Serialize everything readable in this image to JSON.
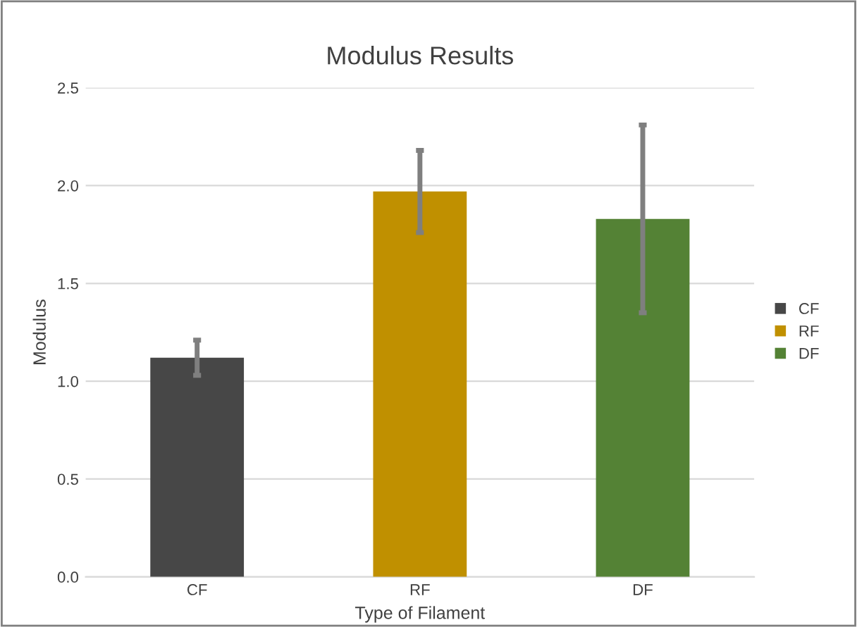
{
  "chart_data": {
    "type": "bar",
    "title": "Modulus Results",
    "xlabel": "Type of Filament",
    "ylabel": "Modulus",
    "categories": [
      "CF",
      "RF",
      "DF"
    ],
    "stacked": true,
    "series": [
      {
        "name": "CF",
        "color": "#474747",
        "values": [
          1.12,
          null,
          null
        ],
        "errors": [
          [
            1.03,
            1.21
          ],
          null,
          null
        ]
      },
      {
        "name": "RF",
        "color": "#c09000",
        "values": [
          null,
          1.97,
          null
        ],
        "errors": [
          null,
          [
            1.76,
            2.18
          ],
          null
        ]
      },
      {
        "name": "DF",
        "color": "#548235",
        "values": [
          null,
          null,
          1.83
        ],
        "errors": [
          null,
          null,
          [
            1.35,
            2.31
          ]
        ]
      }
    ],
    "ylim": [
      0,
      2.5
    ],
    "yticks": [
      {
        "value": 0,
        "label": "0.0"
      },
      {
        "value": 0.5,
        "label": "0.5"
      },
      {
        "value": 1,
        "label": "1.0"
      },
      {
        "value": 1.5,
        "label": "1.5"
      },
      {
        "value": 2,
        "label": "2.0"
      },
      {
        "value": 2.5,
        "label": "2.5"
      }
    ],
    "grid": "y",
    "legend": "right"
  }
}
